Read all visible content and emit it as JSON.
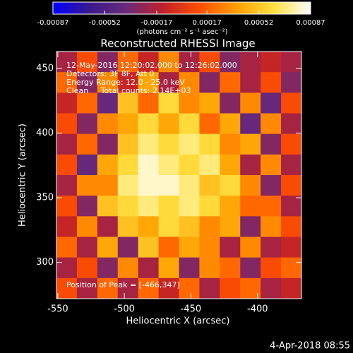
{
  "chart_data": {
    "type": "heatmap",
    "title": "Reconstructed RHESSI Image",
    "colorbar_label": "(photons cm⁻² s⁻¹ asec⁻²)",
    "zlim": [
      -0.00087,
      0.00087
    ],
    "zticks": [
      -0.00087,
      -0.00052,
      -0.00017,
      0.00017,
      0.00052,
      0.00087
    ],
    "colormap": [
      "#0000ff",
      "#3a1a8c",
      "#6a2a7a",
      "#c0202a",
      "#ff5000",
      "#ffa000",
      "#ffe040",
      "#ffffff"
    ],
    "xlabel": "Heliocentric X (arcsec)",
    "ylabel": "Heliocentric Y (arcsec)",
    "xlim": [
      -551,
      -367
    ],
    "ylim": [
      272,
      463
    ],
    "xticks": [
      -550,
      -500,
      -450,
      -400
    ],
    "yticks": [
      300,
      350,
      400,
      450
    ],
    "annotations": [
      "12-May-2016 12:20:02.000 to 12:26:02.000",
      "Detectors: 3F 8F, Att 0",
      "Energy Range: 12.0 - 25.0 keV",
      "Clean     Total counts: 2.14E+03"
    ],
    "peak_label": "Position of Peak = [-466,347]",
    "timestamp": "4-Apr-2018 08:55",
    "z": [
      [
        -0.0002,
        0.0001,
        -0.0003,
        0.0002,
        -0.0001,
        0.0003,
        -0.0002,
        0.0001,
        -0.0003,
        -0.0002,
        -0.0001,
        -0.0002
      ],
      [
        0.0002,
        -0.0003,
        0.0003,
        -0.0001,
        0.0004,
        -0.0002,
        0.0003,
        -0.0003,
        0.0002,
        -0.0002,
        0.0001,
        -0.0003
      ],
      [
        -0.0001,
        0.0002,
        -0.0004,
        0.0005,
        0.0002,
        0.0006,
        0.0003,
        0.0004,
        -0.0003,
        0.0003,
        -0.0004,
        0.0001
      ],
      [
        0.0001,
        -0.0003,
        0.0003,
        0.0004,
        0.0006,
        0.0004,
        0.0006,
        0.0002,
        0.0004,
        -0.0004,
        0.0003,
        -0.0002
      ],
      [
        -0.0002,
        0.0002,
        -0.0003,
        0.0005,
        0.0007,
        0.0006,
        0.0007,
        0.0006,
        0.0003,
        0.0004,
        -0.0003,
        0.0001
      ],
      [
        0.0001,
        -0.0004,
        0.0004,
        0.0006,
        0.0008,
        0.0007,
        0.0006,
        0.0007,
        0.0004,
        -0.0002,
        0.0003,
        -0.0002
      ],
      [
        -0.0002,
        0.0003,
        0.0003,
        0.0007,
        0.0008,
        0.0008,
        0.0007,
        0.0005,
        0.0006,
        0.0003,
        -0.0003,
        0.0001
      ],
      [
        0.0001,
        -0.0003,
        0.0005,
        0.0006,
        0.0007,
        0.0006,
        0.0007,
        0.0006,
        0.0004,
        0.0002,
        0.0002,
        -0.0002
      ],
      [
        -0.0001,
        0.0003,
        -0.0002,
        0.0005,
        0.0004,
        0.0006,
        0.0005,
        0.0003,
        0.0004,
        -0.0003,
        0.0003,
        0.0001
      ],
      [
        0.0002,
        -0.0002,
        0.0004,
        -0.0003,
        0.0005,
        0.0002,
        0.0004,
        0.0003,
        -0.0002,
        0.0003,
        -0.0002,
        -0.0001
      ],
      [
        -0.0002,
        0.0001,
        -0.0003,
        0.0003,
        -0.0002,
        0.0004,
        -0.0003,
        0.0003,
        0.0002,
        -0.0003,
        0.0001,
        0.0002
      ],
      [
        0.0001,
        -0.0002,
        0.0002,
        -0.0002,
        0.0002,
        -0.0001,
        0.0002,
        -0.0002,
        0.0001,
        0.0002,
        -0.0002,
        -0.0001
      ]
    ]
  }
}
